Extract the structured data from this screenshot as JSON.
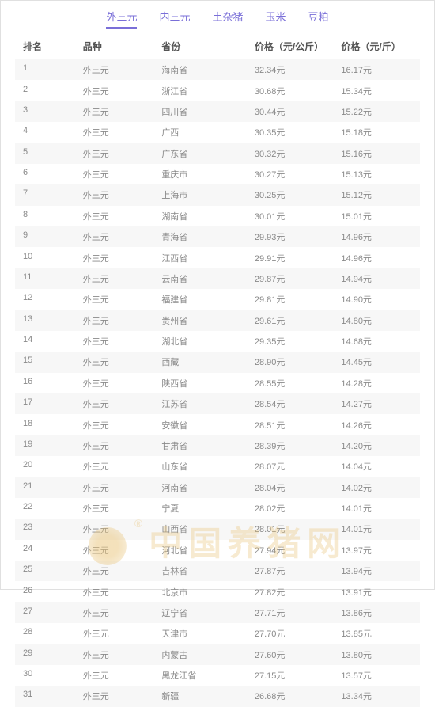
{
  "tabs": [
    {
      "label": "外三元",
      "active": true
    },
    {
      "label": "内三元",
      "active": false
    },
    {
      "label": "土杂猪",
      "active": false
    },
    {
      "label": "玉米",
      "active": false
    },
    {
      "label": "豆粕",
      "active": false
    }
  ],
  "columns": {
    "rank": "排名",
    "breed": "品种",
    "province": "省份",
    "price_kg": "价格（元/公斤）",
    "price_jin": "价格（元/斤）"
  },
  "breed_value": "外三元",
  "currency_suffix": "元",
  "rows": [
    {
      "rank": "1",
      "province": "海南省",
      "price_kg": "32.34",
      "price_jin": "16.17"
    },
    {
      "rank": "2",
      "province": "浙江省",
      "price_kg": "30.68",
      "price_jin": "15.34"
    },
    {
      "rank": "3",
      "province": "四川省",
      "price_kg": "30.44",
      "price_jin": "15.22"
    },
    {
      "rank": "4",
      "province": "广西",
      "price_kg": "30.35",
      "price_jin": "15.18"
    },
    {
      "rank": "5",
      "province": "广东省",
      "price_kg": "30.32",
      "price_jin": "15.16"
    },
    {
      "rank": "6",
      "province": "重庆市",
      "price_kg": "30.27",
      "price_jin": "15.13"
    },
    {
      "rank": "7",
      "province": "上海市",
      "price_kg": "30.25",
      "price_jin": "15.12"
    },
    {
      "rank": "8",
      "province": "湖南省",
      "price_kg": "30.01",
      "price_jin": "15.01"
    },
    {
      "rank": "9",
      "province": "青海省",
      "price_kg": "29.93",
      "price_jin": "14.96"
    },
    {
      "rank": "10",
      "province": "江西省",
      "price_kg": "29.91",
      "price_jin": "14.96"
    },
    {
      "rank": "11",
      "province": "云南省",
      "price_kg": "29.87",
      "price_jin": "14.94"
    },
    {
      "rank": "12",
      "province": "福建省",
      "price_kg": "29.81",
      "price_jin": "14.90"
    },
    {
      "rank": "13",
      "province": "贵州省",
      "price_kg": "29.61",
      "price_jin": "14.80"
    },
    {
      "rank": "14",
      "province": "湖北省",
      "price_kg": "29.35",
      "price_jin": "14.68"
    },
    {
      "rank": "15",
      "province": "西藏",
      "price_kg": "28.90",
      "price_jin": "14.45"
    },
    {
      "rank": "16",
      "province": "陕西省",
      "price_kg": "28.55",
      "price_jin": "14.28"
    },
    {
      "rank": "17",
      "province": "江苏省",
      "price_kg": "28.54",
      "price_jin": "14.27"
    },
    {
      "rank": "18",
      "province": "安徽省",
      "price_kg": "28.51",
      "price_jin": "14.26"
    },
    {
      "rank": "19",
      "province": "甘肃省",
      "price_kg": "28.39",
      "price_jin": "14.20"
    },
    {
      "rank": "20",
      "province": "山东省",
      "price_kg": "28.07",
      "price_jin": "14.04"
    },
    {
      "rank": "21",
      "province": "河南省",
      "price_kg": "28.04",
      "price_jin": "14.02"
    },
    {
      "rank": "22",
      "province": "宁夏",
      "price_kg": "28.02",
      "price_jin": "14.01"
    },
    {
      "rank": "23",
      "province": "山西省",
      "price_kg": "28.01",
      "price_jin": "14.01"
    },
    {
      "rank": "24",
      "province": "河北省",
      "price_kg": "27.94",
      "price_jin": "13.97"
    },
    {
      "rank": "25",
      "province": "吉林省",
      "price_kg": "27.87",
      "price_jin": "13.94"
    },
    {
      "rank": "26",
      "province": "北京市",
      "price_kg": "27.82",
      "price_jin": "13.91"
    },
    {
      "rank": "27",
      "province": "辽宁省",
      "price_kg": "27.71",
      "price_jin": "13.86"
    },
    {
      "rank": "28",
      "province": "天津市",
      "price_kg": "27.70",
      "price_jin": "13.85"
    },
    {
      "rank": "29",
      "province": "内蒙古",
      "price_kg": "27.60",
      "price_jin": "13.80"
    },
    {
      "rank": "30",
      "province": "黑龙江省",
      "price_kg": "27.15",
      "price_jin": "13.57"
    },
    {
      "rank": "31",
      "province": "新疆",
      "price_kg": "26.68",
      "price_jin": "13.34"
    }
  ],
  "watermark": {
    "text": "中国养猪网",
    "reg": "®",
    "color": "rgba(232,195,120,0.35)"
  },
  "colors": {
    "tab": "#7a6fd8",
    "header_text": "#555555",
    "row_text": "#8a8a8a",
    "row_odd_bg": "#f7f7f7",
    "background": "#ffffff",
    "border": "#e0e0e0"
  }
}
